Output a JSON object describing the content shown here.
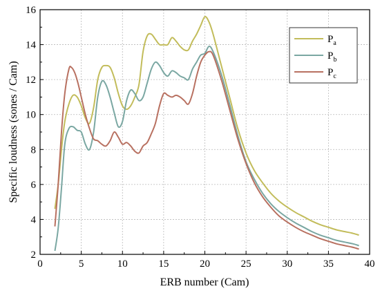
{
  "chart_data": {
    "type": "line",
    "title": "",
    "xlabel": "ERB number (Cam)",
    "ylabel": "Specific loudness (sones / Cam)",
    "xlim": [
      0,
      40
    ],
    "ylim": [
      2,
      16
    ],
    "xticks": [
      0,
      5,
      10,
      15,
      20,
      25,
      30,
      35,
      40
    ],
    "yticks": [
      2,
      4,
      6,
      8,
      10,
      12,
      14,
      16
    ],
    "grid": true,
    "legend_position": "top-right",
    "series": [
      {
        "name": "P",
        "subscript": "a",
        "color": "#c2bc5a",
        "points": [
          [
            1.8,
            4.6
          ],
          [
            2.2,
            6.0
          ],
          [
            2.6,
            8.0
          ],
          [
            3.0,
            9.6
          ],
          [
            3.5,
            10.6
          ],
          [
            4.0,
            11.1
          ],
          [
            4.5,
            11.0
          ],
          [
            5.0,
            10.5
          ],
          [
            5.5,
            9.8
          ],
          [
            6.0,
            9.5
          ],
          [
            6.5,
            10.4
          ],
          [
            7.0,
            12.0
          ],
          [
            7.5,
            12.7
          ],
          [
            8.0,
            12.8
          ],
          [
            8.5,
            12.7
          ],
          [
            9.0,
            12.1
          ],
          [
            9.5,
            11.2
          ],
          [
            10.0,
            10.5
          ],
          [
            10.5,
            10.3
          ],
          [
            11.0,
            10.5
          ],
          [
            11.5,
            11.0
          ],
          [
            12.0,
            11.7
          ],
          [
            12.5,
            13.6
          ],
          [
            13.0,
            14.5
          ],
          [
            13.5,
            14.6
          ],
          [
            14.0,
            14.3
          ],
          [
            14.5,
            14.0
          ],
          [
            15.0,
            14.0
          ],
          [
            15.5,
            14.0
          ],
          [
            16.0,
            14.4
          ],
          [
            16.5,
            14.2
          ],
          [
            17.0,
            13.9
          ],
          [
            17.5,
            13.7
          ],
          [
            18.0,
            13.7
          ],
          [
            18.5,
            14.2
          ],
          [
            19.0,
            14.6
          ],
          [
            19.5,
            15.1
          ],
          [
            20.0,
            15.6
          ],
          [
            20.5,
            15.3
          ],
          [
            21.0,
            14.6
          ],
          [
            22.0,
            12.8
          ],
          [
            23.0,
            11.0
          ],
          [
            24.0,
            9.2
          ],
          [
            25.0,
            7.8
          ],
          [
            26.0,
            6.8
          ],
          [
            27.0,
            6.1
          ],
          [
            28.0,
            5.5
          ],
          [
            29.0,
            5.05
          ],
          [
            30.0,
            4.7
          ],
          [
            31.0,
            4.4
          ],
          [
            32.0,
            4.15
          ],
          [
            33.0,
            3.9
          ],
          [
            34.0,
            3.7
          ],
          [
            35.0,
            3.55
          ],
          [
            36.0,
            3.4
          ],
          [
            37.0,
            3.3
          ],
          [
            38.0,
            3.2
          ],
          [
            38.7,
            3.1
          ]
        ]
      },
      {
        "name": "P",
        "subscript": "b",
        "color": "#7aa7a2",
        "points": [
          [
            1.8,
            2.2
          ],
          [
            2.2,
            3.5
          ],
          [
            2.6,
            5.8
          ],
          [
            3.0,
            8.3
          ],
          [
            3.5,
            9.2
          ],
          [
            4.0,
            9.3
          ],
          [
            4.5,
            9.1
          ],
          [
            5.0,
            9.0
          ],
          [
            5.5,
            8.3
          ],
          [
            6.0,
            8.0
          ],
          [
            6.5,
            9.0
          ],
          [
            7.0,
            11.0
          ],
          [
            7.5,
            11.9
          ],
          [
            8.0,
            11.7
          ],
          [
            8.5,
            11.0
          ],
          [
            9.0,
            10.1
          ],
          [
            9.5,
            9.3
          ],
          [
            10.0,
            9.6
          ],
          [
            10.5,
            10.8
          ],
          [
            11.0,
            11.4
          ],
          [
            11.5,
            11.2
          ],
          [
            12.0,
            10.8
          ],
          [
            12.5,
            11.0
          ],
          [
            13.0,
            11.8
          ],
          [
            13.5,
            12.6
          ],
          [
            14.0,
            13.0
          ],
          [
            14.5,
            12.8
          ],
          [
            15.0,
            12.4
          ],
          [
            15.5,
            12.2
          ],
          [
            16.0,
            12.5
          ],
          [
            16.5,
            12.4
          ],
          [
            17.0,
            12.2
          ],
          [
            17.5,
            12.1
          ],
          [
            18.0,
            12.0
          ],
          [
            18.5,
            12.6
          ],
          [
            19.0,
            13.0
          ],
          [
            19.5,
            13.4
          ],
          [
            20.0,
            13.5
          ],
          [
            20.5,
            13.9
          ],
          [
            21.0,
            13.6
          ],
          [
            22.0,
            12.3
          ],
          [
            23.0,
            10.6
          ],
          [
            24.0,
            8.8
          ],
          [
            25.0,
            7.3
          ],
          [
            26.0,
            6.3
          ],
          [
            27.0,
            5.5
          ],
          [
            28.0,
            4.9
          ],
          [
            29.0,
            4.45
          ],
          [
            30.0,
            4.1
          ],
          [
            31.0,
            3.8
          ],
          [
            32.0,
            3.55
          ],
          [
            33.0,
            3.3
          ],
          [
            34.0,
            3.1
          ],
          [
            35.0,
            2.95
          ],
          [
            36.0,
            2.8
          ],
          [
            37.0,
            2.7
          ],
          [
            38.0,
            2.6
          ],
          [
            38.7,
            2.5
          ]
        ]
      },
      {
        "name": "P",
        "subscript": "c",
        "color": "#b87060",
        "points": [
          [
            1.8,
            3.6
          ],
          [
            2.2,
            6.0
          ],
          [
            2.6,
            9.0
          ],
          [
            3.0,
            11.2
          ],
          [
            3.5,
            12.6
          ],
          [
            3.8,
            12.7
          ],
          [
            4.2,
            12.4
          ],
          [
            4.6,
            11.8
          ],
          [
            5.0,
            11.0
          ],
          [
            5.5,
            10.0
          ],
          [
            6.0,
            9.2
          ],
          [
            6.5,
            8.6
          ],
          [
            7.0,
            8.5
          ],
          [
            7.5,
            8.3
          ],
          [
            8.0,
            8.2
          ],
          [
            8.5,
            8.5
          ],
          [
            9.0,
            9.0
          ],
          [
            9.5,
            8.7
          ],
          [
            10.0,
            8.3
          ],
          [
            10.5,
            8.4
          ],
          [
            11.0,
            8.2
          ],
          [
            11.5,
            7.9
          ],
          [
            12.0,
            7.8
          ],
          [
            12.5,
            8.2
          ],
          [
            13.0,
            8.4
          ],
          [
            13.5,
            8.9
          ],
          [
            14.0,
            9.5
          ],
          [
            14.5,
            10.5
          ],
          [
            15.0,
            11.2
          ],
          [
            15.5,
            11.1
          ],
          [
            16.0,
            11.0
          ],
          [
            16.5,
            11.1
          ],
          [
            17.0,
            11.0
          ],
          [
            17.5,
            10.8
          ],
          [
            18.0,
            10.6
          ],
          [
            18.5,
            11.2
          ],
          [
            19.0,
            12.2
          ],
          [
            19.5,
            13.0
          ],
          [
            20.0,
            13.4
          ],
          [
            20.5,
            13.6
          ],
          [
            21.0,
            13.4
          ],
          [
            22.0,
            12.0
          ],
          [
            23.0,
            10.3
          ],
          [
            24.0,
            8.6
          ],
          [
            25.0,
            7.2
          ],
          [
            26.0,
            6.1
          ],
          [
            27.0,
            5.3
          ],
          [
            28.0,
            4.7
          ],
          [
            29.0,
            4.2
          ],
          [
            30.0,
            3.85
          ],
          [
            31.0,
            3.55
          ],
          [
            32.0,
            3.3
          ],
          [
            33.0,
            3.1
          ],
          [
            34.0,
            2.9
          ],
          [
            35.0,
            2.75
          ],
          [
            36.0,
            2.6
          ],
          [
            37.0,
            2.5
          ],
          [
            38.0,
            2.4
          ],
          [
            38.7,
            2.3
          ]
        ]
      }
    ]
  }
}
